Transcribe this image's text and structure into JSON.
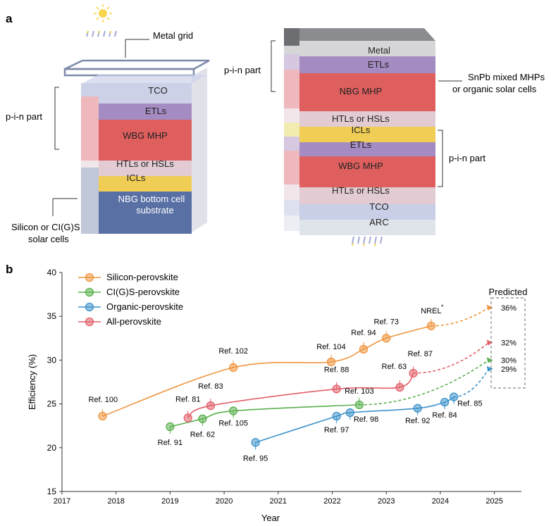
{
  "panel_a": {
    "label": "a",
    "left_stack": {
      "layers": [
        {
          "text": "TCO",
          "color": "#c9cfe6"
        },
        {
          "text": "ETLs",
          "color": "#a48bc2"
        },
        {
          "text": "WBG MHP",
          "color": "#df5f5f"
        },
        {
          "text": "HTLs or HSLs",
          "color": "#e2cbd3"
        },
        {
          "text": "ICLs",
          "color": "#f0cd55"
        },
        {
          "text": "NBG bottom cell",
          "color": "#5970a5"
        },
        {
          "text": "substrate",
          "color": "#5970a5"
        }
      ],
      "callouts": {
        "metal_grid": "Metal grid",
        "pin": "p-i-n part",
        "silicon_line1": "Silicon or CI(G)S",
        "silicon_line2": "solar cells"
      }
    },
    "right_stack": {
      "layers": [
        {
          "text": "Metal",
          "color": "#d6d6d8"
        },
        {
          "text": "ETLs",
          "color": "#a48bc2"
        },
        {
          "text": "NBG MHP",
          "color": "#df5f5f"
        },
        {
          "text": "HTLs or HSLs",
          "color": "#e2cbd3"
        },
        {
          "text": "ICLs",
          "color": "#f0cd55"
        },
        {
          "text": "ETLs",
          "color": "#a48bc2"
        },
        {
          "text": "WBG MHP",
          "color": "#df5f5f"
        },
        {
          "text": "HTLs or HSLs",
          "color": "#e2cbd3"
        },
        {
          "text": "TCO",
          "color": "#c9cfe6"
        },
        {
          "text": "ARC",
          "color": "#dfe3ea"
        }
      ],
      "callouts": {
        "pin_top": "p-i-n part",
        "pin_bottom": "p-i-n part",
        "snpb_line1": "SnPb mixed MHPs",
        "snpb_line2": "or organic solar cells"
      }
    }
  },
  "panel_b": {
    "label": "b",
    "predicted_label": "Predicted",
    "nrel_asterisk": "*"
  },
  "chart_data": {
    "type": "line",
    "xlabel": "Year",
    "ylabel": "Efficiency (%)",
    "xlim": [
      2017,
      2025.5
    ],
    "ylim": [
      15,
      40
    ],
    "xticks": [
      "2017",
      "2018",
      "2019",
      "2020",
      "2021",
      "2022",
      "2023",
      "2024",
      "2025"
    ],
    "yticks": [
      "15",
      "20",
      "25",
      "30",
      "35",
      "40"
    ],
    "grid": false,
    "legend_position": "top-left",
    "series": [
      {
        "name": "Silicon-perovskite",
        "color": "#f0953e",
        "points": [
          {
            "x": 2017.75,
            "y": 23.6,
            "label": "Ref. 100"
          },
          {
            "x": 2020.17,
            "y": 29.15,
            "label": "Ref. 102"
          },
          {
            "x": 2021.98,
            "y": 29.8,
            "label": "Ref. 104"
          },
          {
            "x": 2022.58,
            "y": 31.25,
            "label": "Ref. 94"
          },
          {
            "x": 2023.0,
            "y": 32.5,
            "label": "Ref. 73"
          },
          {
            "x": 2023.83,
            "y": 33.9,
            "label": "NREL"
          }
        ],
        "predicted": {
          "x": 2025,
          "y": 36,
          "label": "36%"
        }
      },
      {
        "name": "CI(G)S-perovskite",
        "color": "#5ab04e",
        "points": [
          {
            "x": 2019.0,
            "y": 22.4,
            "label": "Ref. 91"
          },
          {
            "x": 2019.6,
            "y": 23.3,
            "label": "Ref. 62"
          },
          {
            "x": 2020.17,
            "y": 24.2,
            "label": "Ref. 105"
          },
          {
            "x": 2022.5,
            "y": 24.9,
            "label": "Ref. 103"
          }
        ],
        "predicted": {
          "x": 2025,
          "y": 30,
          "label": "30%"
        }
      },
      {
        "name": "Organic-perovskite",
        "color": "#3e93cb",
        "points": [
          {
            "x": 2020.58,
            "y": 20.6,
            "label": "Ref. 95"
          },
          {
            "x": 2022.08,
            "y": 23.6,
            "label": "Ref. 97"
          },
          {
            "x": 2022.33,
            "y": 24.0,
            "label": "Ref. 98"
          },
          {
            "x": 2023.58,
            "y": 24.5,
            "label": "Ref. 92"
          },
          {
            "x": 2024.08,
            "y": 25.2,
            "label": "Ref. 84"
          },
          {
            "x": 2024.25,
            "y": 25.8,
            "label": "Ref. 85"
          }
        ],
        "predicted": {
          "x": 2025,
          "y": 29,
          "label": "29%"
        }
      },
      {
        "name": "All-perovskite",
        "color": "#e2606a",
        "points": [
          {
            "x": 2019.33,
            "y": 23.4,
            "label": "Ref. 81"
          },
          {
            "x": 2019.75,
            "y": 24.8,
            "label": "Ref. 83"
          },
          {
            "x": 2022.08,
            "y": 26.7,
            "label": "Ref. 88"
          },
          {
            "x": 2023.25,
            "y": 26.9,
            "label": "Ref. 63"
          },
          {
            "x": 2023.5,
            "y": 28.5,
            "label": "Ref. 87"
          }
        ],
        "predicted": {
          "x": 2025,
          "y": 32,
          "label": "32%"
        }
      }
    ]
  }
}
